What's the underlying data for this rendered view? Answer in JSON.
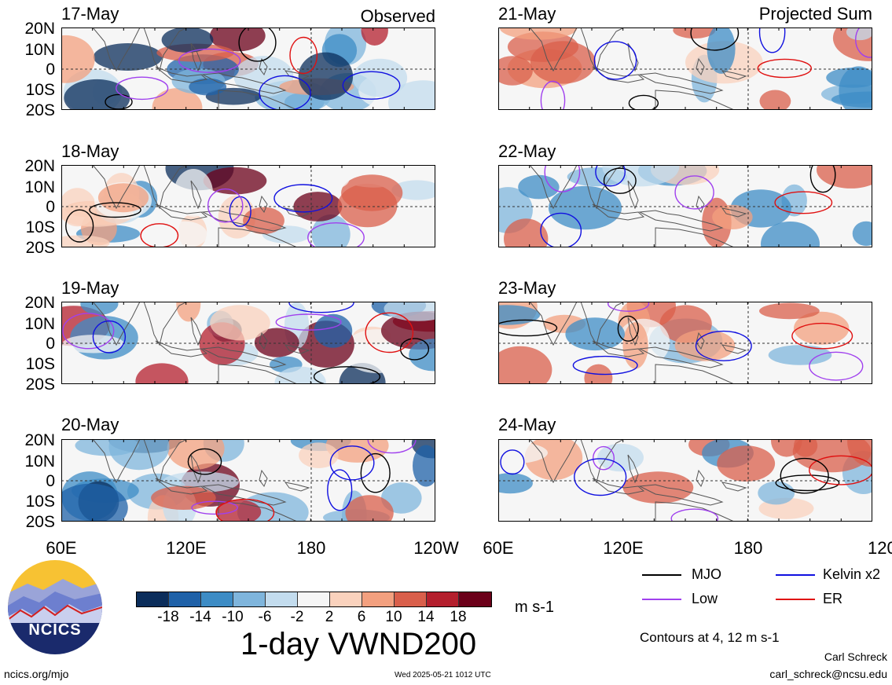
{
  "headers": {
    "left": "Observed",
    "right": "Projected Sum"
  },
  "panels_left": [
    "17-May",
    "18-May",
    "19-May",
    "20-May"
  ],
  "panels_right": [
    "21-May",
    "22-May",
    "23-May",
    "24-May"
  ],
  "lat_labels": [
    "20N",
    "10N",
    "0",
    "10S",
    "20S"
  ],
  "lon_labels": [
    "60E",
    "120E",
    "180",
    "120W"
  ],
  "colorbar": {
    "colors": [
      "#0b2d5b",
      "#1f61a8",
      "#3d8cc5",
      "#7fb5dc",
      "#c3dcee",
      "#f6f6f6",
      "#fad2bd",
      "#f3a07f",
      "#d95f4b",
      "#b41f2d",
      "#6b0019"
    ],
    "ticks": [
      "-18",
      "-14",
      "-10",
      "-6",
      "-2",
      "2",
      "6",
      "10",
      "14",
      "18"
    ],
    "units": "m s-1"
  },
  "title": "1-day VWND200",
  "legend": {
    "items": [
      {
        "label": "MJO",
        "color": "#000000"
      },
      {
        "label": "Kelvin x2",
        "color": "#1010e0"
      },
      {
        "label": "Low",
        "color": "#a040ee"
      },
      {
        "label": "ER",
        "color": "#e01010"
      }
    ],
    "contours": "Contours at 4, 12 m s-1"
  },
  "credits": {
    "author": "Carl Schreck",
    "email": "carl_schreck@ncsu.edu",
    "site": "ncics.org/mjo",
    "timestamp": "Wed 2025-05-21 1012 UTC"
  },
  "logo": {
    "text": "NCICS"
  }
}
